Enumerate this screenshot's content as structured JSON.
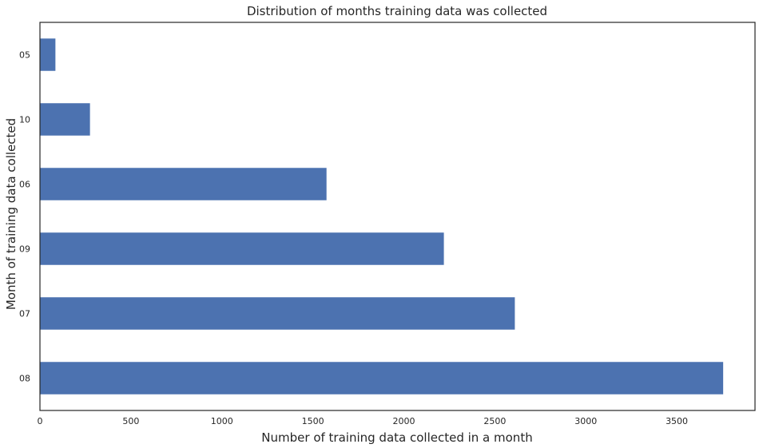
{
  "chart_data": {
    "type": "bar",
    "orientation": "horizontal",
    "title": "Distribution of months training data was collected",
    "xlabel": "Number of training data collected in a month",
    "ylabel": "Month of training data collected",
    "categories": [
      "05",
      "10",
      "06",
      "09",
      "07",
      "08"
    ],
    "values": [
      85,
      275,
      1575,
      2220,
      2610,
      3755
    ],
    "xlim": [
      0,
      3930
    ],
    "xticks": [
      0,
      500,
      1000,
      1500,
      2000,
      2500,
      3000,
      3500
    ],
    "grid": false,
    "bar_color": "#4c72b0"
  }
}
